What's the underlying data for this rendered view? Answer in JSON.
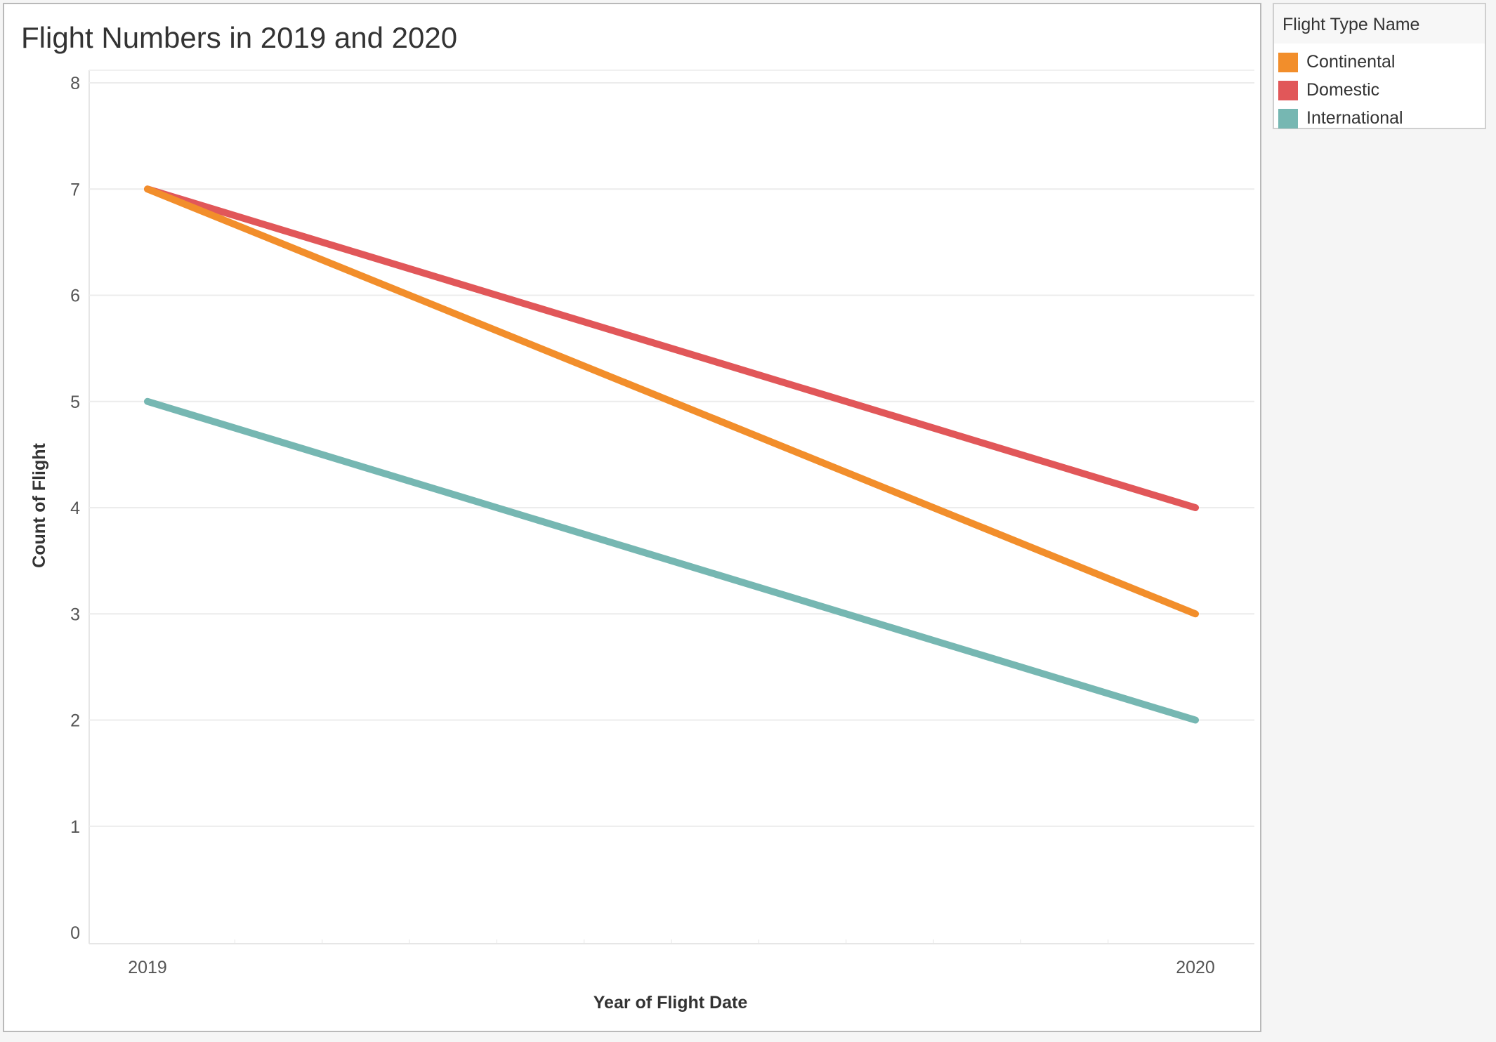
{
  "worksheet": {
    "title": "Flight Numbers in 2019 and 2020"
  },
  "legend": {
    "title": "Flight Type Name"
  },
  "chart_data": {
    "type": "line",
    "title": "Flight Numbers in 2019 and 2020",
    "xlabel": "Year of Flight Date",
    "ylabel": "Count of Flight",
    "x": [
      "2019",
      "2020"
    ],
    "ylim": [
      0,
      8
    ],
    "yticks": [
      0,
      1,
      2,
      3,
      4,
      5,
      6,
      7,
      8
    ],
    "grid": true,
    "legend_position": "right",
    "legend_title": "Flight Type Name",
    "series": [
      {
        "name": "Continental",
        "values": [
          7,
          3
        ],
        "color": "#F28E2B"
      },
      {
        "name": "Domestic",
        "values": [
          7,
          4
        ],
        "color": "#E15759"
      },
      {
        "name": "International",
        "values": [
          5,
          2
        ],
        "color": "#76B7B2"
      }
    ]
  }
}
